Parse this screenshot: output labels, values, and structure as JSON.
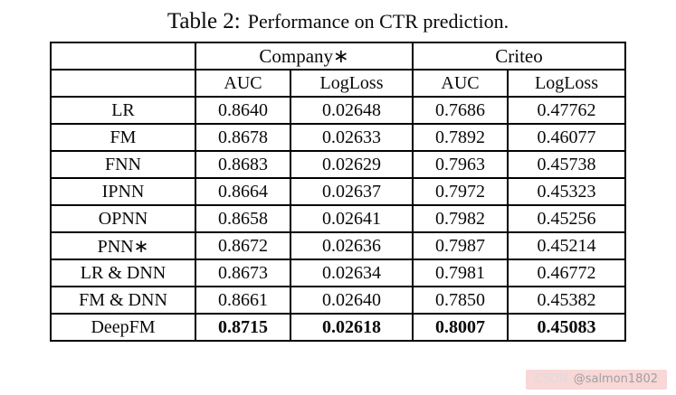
{
  "page": {
    "caption_label": "Table 2:",
    "caption_text": "Performance on CTR prediction."
  },
  "table": {
    "col_groups": [
      "Company∗",
      "Criteo"
    ],
    "sub_headers": [
      "AUC",
      "LogLoss",
      "AUC",
      "LogLoss"
    ],
    "rows": [
      {
        "model": "LR",
        "values": [
          "0.8640",
          "0.02648",
          "0.7686",
          "0.47762"
        ],
        "bold": false
      },
      {
        "model": "FM",
        "values": [
          "0.8678",
          "0.02633",
          "0.7892",
          "0.46077"
        ],
        "bold": false
      },
      {
        "model": "FNN",
        "values": [
          "0.8683",
          "0.02629",
          "0.7963",
          "0.45738"
        ],
        "bold": false
      },
      {
        "model": "IPNN",
        "values": [
          "0.8664",
          "0.02637",
          "0.7972",
          "0.45323"
        ],
        "bold": false
      },
      {
        "model": "OPNN",
        "values": [
          "0.8658",
          "0.02641",
          "0.7982",
          "0.45256"
        ],
        "bold": false
      },
      {
        "model": "PNN∗",
        "values": [
          "0.8672",
          "0.02636",
          "0.7987",
          "0.45214"
        ],
        "bold": false
      },
      {
        "model": "LR & DNN",
        "values": [
          "0.8673",
          "0.02634",
          "0.7981",
          "0.46772"
        ],
        "bold": false
      },
      {
        "model": "FM & DNN",
        "values": [
          "0.8661",
          "0.02640",
          "0.7850",
          "0.45382"
        ],
        "bold": false
      },
      {
        "model": "DeepFM",
        "values": [
          "0.8715",
          "0.02618",
          "0.8007",
          "0.45083"
        ],
        "bold": true
      }
    ]
  },
  "watermark": {
    "brand": "CSDN",
    "handle": "@salmon1802"
  },
  "colors": {
    "border": "#000000",
    "text": "#0a0a0a",
    "watermark_bg": "#f8d7d7",
    "watermark_brand": "#dcdcdc",
    "watermark_handle": "#a0a0a0"
  }
}
